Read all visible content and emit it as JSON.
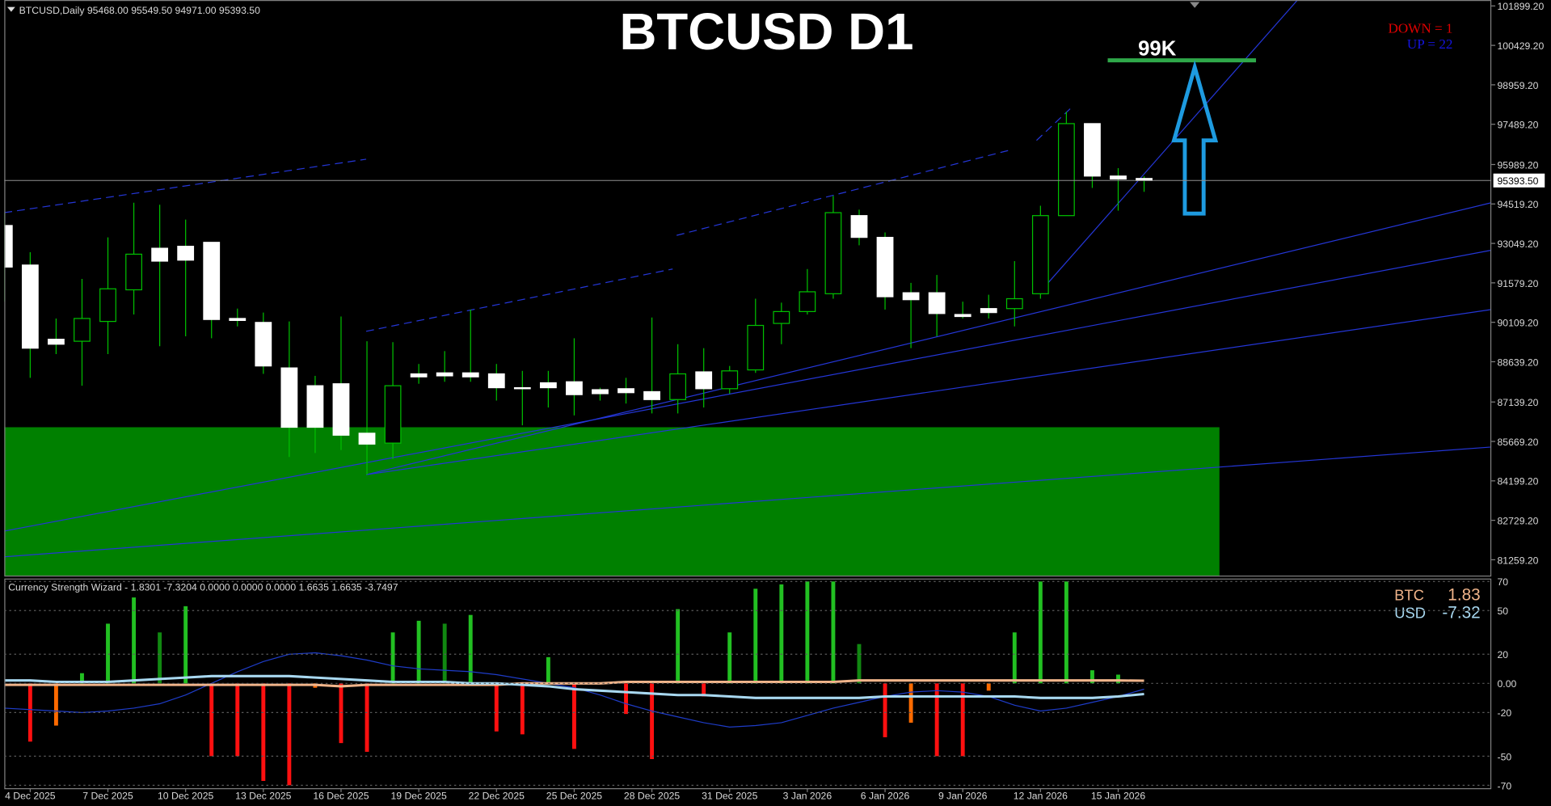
{
  "chart_data": [
    {
      "type": "candlestick",
      "title": "BTCUSD D1",
      "symbol_info": "BTCUSD,Daily  95468.00 95549.50 94971.00 95393.50",
      "annotation": "99K",
      "down_label": "DOWN =  1",
      "up_label": "UP =  22",
      "price_label": "95393.50",
      "colors": {
        "up": "#000000",
        "down": "#ffffff",
        "wick": "#00c000"
      },
      "categories": [
        null,
        "4 Dec 2025",
        null,
        null,
        "7 Dec 2025",
        null,
        null,
        "10 Dec 2025",
        null,
        null,
        "13 Dec 2025",
        null,
        null,
        "16 Dec 2025",
        null,
        null,
        "19 Dec 2025",
        null,
        null,
        "22 Dec 2025",
        null,
        null,
        "25 Dec 2025",
        null,
        null,
        "28 Dec 2025",
        null,
        null,
        "31 Dec 2025",
        null,
        null,
        "3 Jan 2026",
        null,
        null,
        "6 Jan 2026",
        null,
        null,
        "9 Jan 2026",
        null,
        null,
        "12 Jan 2026",
        null,
        null,
        "15 Jan 2026",
        null
      ],
      "open": [
        93716,
        92242,
        89477,
        89403,
        90141,
        91320,
        92868,
        92942,
        93089,
        90251,
        90104,
        88408,
        87745,
        87818,
        85975,
        85607,
        88187,
        88224,
        88224,
        88187,
        87671,
        87855,
        87892,
        87597,
        87634,
        87524,
        87229,
        88261,
        87634,
        88335,
        90067,
        90509,
        91173,
        94085,
        93274,
        91210,
        91210,
        90399,
        90620,
        90620,
        91173,
        94085,
        97513,
        95559,
        95468
      ],
      "high": [
        94195,
        92721,
        90251,
        91726,
        93274,
        94564,
        94490,
        93937,
        93089,
        90620,
        90472,
        90141,
        88113,
        90325,
        89403,
        89367,
        88556,
        89035,
        90583,
        88556,
        88298,
        88298,
        89514,
        87671,
        88040,
        90288,
        89293,
        89145,
        88482,
        90988,
        90841,
        92094,
        94822,
        94306,
        93458,
        91578,
        91873,
        90878,
        91136,
        92389,
        94453,
        97955,
        97513,
        95854,
        95549.5
      ],
      "low": [
        90878,
        88040,
        88924,
        87745,
        88924,
        90399,
        89219,
        89588,
        89514,
        89956,
        88187,
        85091,
        85238,
        85349,
        84427,
        85017,
        87818,
        87892,
        87892,
        87192,
        86270,
        86934,
        86639,
        87192,
        87081,
        86713,
        86713,
        86934,
        87450,
        88224,
        89293,
        90399,
        90988,
        92979,
        90583,
        89145,
        89588,
        90251,
        90251,
        89956,
        90988,
        94085,
        95117,
        94269,
        94971
      ],
      "close": [
        92168,
        89145,
        89293,
        90251,
        91357,
        92647,
        92389,
        92426,
        90214,
        90178,
        88482,
        86197,
        86197,
        85902,
        85570,
        87745,
        88076,
        88113,
        88076,
        87671,
        87634,
        87671,
        87413,
        87450,
        87487,
        87229,
        88187,
        87634,
        88298,
        89993,
        90509,
        91246,
        94195,
        93274,
        91062,
        90952,
        90436,
        90325,
        90472,
        90988,
        94085,
        97513,
        95559,
        95449,
        95393.5
      ],
      "ylim": [
        80670,
        102120
      ],
      "yticks": [
        {
          "value": 101899.2,
          "label": "101899.20"
        },
        {
          "value": 100429.2,
          "label": "100429.20"
        },
        {
          "value": 98959.2,
          "label": "98959.20"
        },
        {
          "value": 97489.2,
          "label": "97489.20"
        },
        {
          "value": 95989.2,
          "label": "95989.20"
        },
        {
          "value": 94519.2,
          "label": "94519.20"
        },
        {
          "value": 93049.2,
          "label": "93049.20"
        },
        {
          "value": 91579.2,
          "label": "91579.20"
        },
        {
          "value": 90109.2,
          "label": "90109.20"
        },
        {
          "value": 88639.2,
          "label": "88639.20"
        },
        {
          "value": 87139.2,
          "label": "87139.20"
        },
        {
          "value": 85669.2,
          "label": "85669.20"
        },
        {
          "value": 84199.2,
          "label": "84199.20"
        },
        {
          "value": 82729.2,
          "label": "82729.20"
        },
        {
          "value": 81259.2,
          "label": "81259.20"
        }
      ]
    },
    {
      "type": "bar",
      "title": "Currency Strength Wizard - 1.8301 -7.3204 0.0000 0.0000 0.0000 1.6635 1.6635 -3.7497",
      "currency_labels": [
        {
          "name": "BTC",
          "value": 1.83,
          "color": "#f0b48a"
        },
        {
          "name": "USD",
          "value": -7.32,
          "color": "#a8d8f0"
        }
      ],
      "values": [
        null,
        -40,
        -29,
        7,
        41,
        59,
        35,
        53,
        -50,
        -50,
        -67,
        -70,
        -3,
        -41,
        -47,
        35,
        43,
        41,
        47,
        -33,
        -35,
        18,
        -45,
        null,
        -21,
        -52,
        51,
        -9,
        35,
        65,
        68,
        70,
        70,
        27,
        -37,
        -27,
        -50,
        -50,
        -5,
        35,
        70,
        70,
        9,
        6,
        null
      ],
      "colors": [
        null,
        "#ff1010",
        "#ff6a00",
        "#22c022",
        "#22c022",
        "#22c022",
        "#118811",
        "#22c022",
        "#ff1010",
        "#ff1010",
        "#ff1010",
        "#ff1010",
        "#ff6a00",
        "#ff1010",
        "#ff1010",
        "#22c022",
        "#22c022",
        "#118811",
        "#22c022",
        "#ff1010",
        "#ff1010",
        "#22c022",
        "#ff1010",
        null,
        "#ff1010",
        "#ff1010",
        "#22c022",
        "#ff1010",
        "#22c022",
        "#22c022",
        "#22c022",
        "#22c022",
        "#22c022",
        "#118811",
        "#ff1010",
        "#ff6a00",
        "#ff1010",
        "#ff1010",
        "#ff6a00",
        "#22c022",
        "#22c022",
        "#22c022",
        "#22c022",
        "#22c022",
        null
      ],
      "lines": [
        {
          "color": "#1e3cc8",
          "width": 1,
          "values": [
            -17,
            -18,
            -19,
            -20,
            -19,
            -17,
            -14,
            -8,
            0,
            8,
            15,
            20,
            21,
            19,
            16,
            12,
            10,
            9,
            8,
            6,
            3,
            0,
            -3,
            -8,
            -14,
            -19,
            -23,
            -27,
            -30,
            -29,
            -27,
            -22,
            -17,
            -13,
            -9,
            -6,
            -5,
            -6,
            -9,
            -15,
            -19,
            -17,
            -13,
            -9,
            -4
          ]
        },
        {
          "color": "#f0b48a",
          "width": 2.5,
          "values": [
            -1,
            -1,
            -1,
            -1,
            -1,
            -1,
            -1,
            -1,
            -1,
            -1,
            -1,
            -1,
            -1,
            -2,
            -1,
            -1,
            -1,
            -1,
            -1,
            -1,
            0,
            0,
            0,
            0,
            1,
            1,
            1,
            1,
            1,
            1,
            1,
            1,
            1,
            2,
            2,
            2,
            2,
            2,
            2,
            2,
            2,
            2,
            2,
            2,
            1.83
          ]
        },
        {
          "color": "#a8d8f0",
          "width": 2.5,
          "values": [
            2,
            2,
            1,
            1,
            1,
            2,
            3,
            4,
            5,
            5,
            5,
            5,
            4,
            3,
            2,
            1,
            1,
            1,
            0,
            0,
            -1,
            -2,
            -4,
            -5,
            -6,
            -7,
            -8,
            -8,
            -9,
            -10,
            -10,
            -10,
            -10,
            -10,
            -9,
            -9,
            -9,
            -9,
            -9,
            -9,
            -10,
            -10,
            -10,
            -9,
            -7.32
          ]
        }
      ],
      "ylim": [
        -72,
        72
      ],
      "yticks": [
        70,
        50,
        20,
        {
          "value": 0,
          "label": "0.00"
        },
        -20,
        -50,
        -70
      ]
    }
  ]
}
